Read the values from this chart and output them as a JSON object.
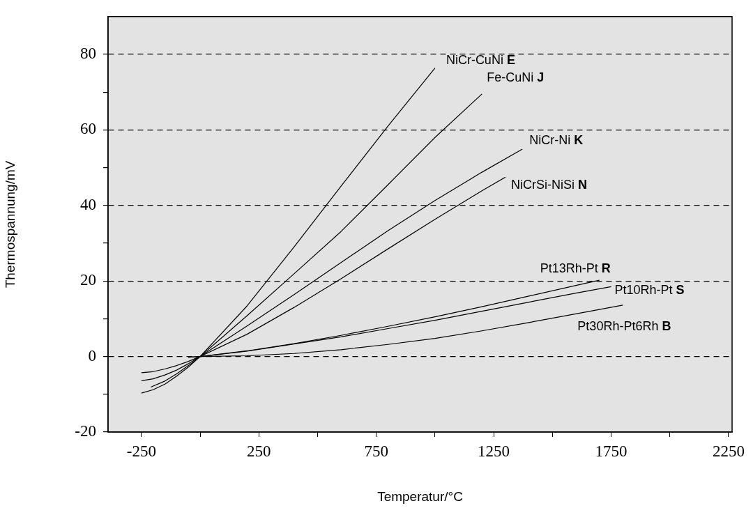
{
  "chart_data": {
    "type": "line",
    "xlabel": "Temperatur/°C",
    "ylabel": "Thermospannung/mV",
    "xlim": [
      -392,
      2265
    ],
    "ylim": [
      -20,
      90
    ],
    "xticks": [
      -250,
      {
        "value": 0,
        "label": null
      },
      250,
      {
        "value": 500,
        "label": null
      },
      750,
      {
        "value": 1000,
        "label": null
      },
      1250,
      {
        "value": 1500,
        "label": null
      },
      1750,
      {
        "value": 2000,
        "label": null
      },
      2250
    ],
    "yticks": [
      -20,
      {
        "value": -10,
        "label": null
      },
      0,
      {
        "value": 10,
        "label": null
      },
      20,
      {
        "value": 30,
        "label": null
      },
      40,
      {
        "value": 50,
        "label": null
      },
      60,
      {
        "value": 70,
        "label": null
      },
      80
    ],
    "grid": "y",
    "series": [
      {
        "name": "NiCr-CuNi E",
        "color": "#000000",
        "x": [
          -250,
          -200,
          -150,
          -100,
          -50,
          0,
          200,
          400,
          600,
          800,
          1000
        ],
        "values": [
          -9.7,
          -8.8,
          -7.3,
          -5.2,
          -2.8,
          0,
          13.4,
          29,
          45.1,
          61,
          76.4
        ]
      },
      {
        "name": "Fe-CuNi J",
        "color": "#000000",
        "x": [
          -210,
          -150,
          -100,
          -50,
          0,
          200,
          400,
          600,
          800,
          1000,
          1200
        ],
        "values": [
          -8.1,
          -6.5,
          -4.6,
          -2.4,
          0,
          10.8,
          21.9,
          33.1,
          45.5,
          58,
          69.5
        ]
      },
      {
        "name": "NiCr-Ni K",
        "color": "#000000",
        "x": [
          -250,
          -200,
          -150,
          -100,
          -50,
          0,
          200,
          400,
          600,
          800,
          1000,
          1200,
          1372
        ],
        "values": [
          -6.4,
          -5.9,
          -4.9,
          -3.6,
          -1.9,
          0,
          8.1,
          16.4,
          24.9,
          33.3,
          41.3,
          48.8,
          54.9
        ]
      },
      {
        "name": "NiCrSi-NiSi N",
        "color": "#000000",
        "x": [
          -250,
          -200,
          -150,
          -100,
          -50,
          0,
          200,
          400,
          600,
          800,
          1000,
          1200,
          1300
        ],
        "values": [
          -4.3,
          -4,
          -3.3,
          -2.4,
          -1.3,
          0,
          5.9,
          13,
          20.6,
          28.5,
          36.3,
          43.9,
          47.5
        ]
      },
      {
        "name": "Pt13Rh-Pt R",
        "color": "#000000",
        "x": [
          -50,
          0,
          200,
          400,
          600,
          800,
          1000,
          1200,
          1400,
          1600,
          1700
        ],
        "values": [
          -0.2,
          0,
          1.5,
          3.4,
          5.6,
          8,
          10.5,
          13.2,
          16,
          18.8,
          20.2
        ]
      },
      {
        "name": "Pt10Rh-Pt S",
        "color": "#000000",
        "x": [
          -50,
          0,
          200,
          400,
          600,
          800,
          1000,
          1200,
          1400,
          1600,
          1750
        ],
        "values": [
          -0.2,
          0,
          1.4,
          3.3,
          5.2,
          7.4,
          9.6,
          12,
          14.4,
          16.8,
          18.5
        ]
      },
      {
        "name": "Pt30Rh-Pt6Rh B",
        "color": "#000000",
        "x": [
          0,
          200,
          400,
          600,
          800,
          1000,
          1200,
          1400,
          1600,
          1800
        ],
        "values": [
          0,
          0.2,
          0.8,
          1.8,
          3.2,
          4.8,
          6.8,
          9,
          11.3,
          13.6
        ]
      }
    ]
  }
}
